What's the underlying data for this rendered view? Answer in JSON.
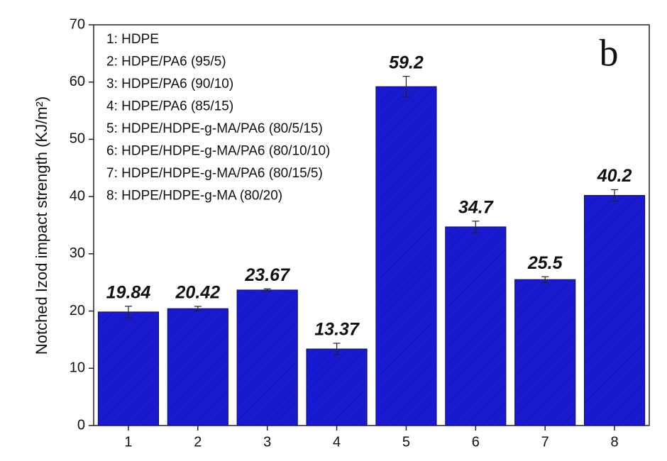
{
  "chart_data": {
    "type": "bar",
    "ylabel": "Notched Izod impact strength (KJ/m²)",
    "panel_label": "b",
    "annotations": [
      "1: HDPE",
      "2: HDPE/PA6 (95/5)",
      "3: HDPE/PA6 (90/10)",
      "4: HDPE/PA6 (85/15)",
      "5: HDPE/HDPE-g-MA/PA6 (80/5/15)",
      "6: HDPE/HDPE-g-MA/PA6 (80/10/10)",
      "7: HDPE/HDPE-g-MA/PA6 (80/15/5)",
      "8: HDPE/HDPE-g-MA (80/20)"
    ],
    "categories": [
      "1",
      "2",
      "3",
      "4",
      "5",
      "6",
      "7",
      "8"
    ],
    "values": [
      19.84,
      20.42,
      23.67,
      13.37,
      59.2,
      34.7,
      25.5,
      40.2
    ],
    "errors": [
      1.0,
      0.4,
      0.2,
      1.0,
      1.8,
      1.0,
      0.5,
      1.0
    ],
    "color": "#1a1ad0",
    "ylim": [
      0,
      70
    ],
    "yticks": [
      0,
      10,
      20,
      30,
      40,
      50,
      60,
      70
    ]
  }
}
